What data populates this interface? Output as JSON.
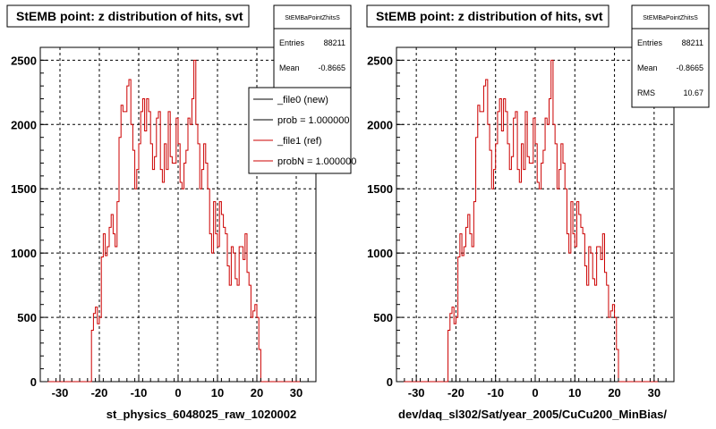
{
  "chart_data": [
    {
      "type": "histogram",
      "title": "StEMB point: z distribution of hits, svt",
      "xlabel": "st_physics_6048025_raw_1020002",
      "ylabel": "",
      "xlim": [
        -35,
        35
      ],
      "ylim": [
        0,
        2600
      ],
      "x_ticks": [
        -30,
        -20,
        -10,
        0,
        10,
        20,
        30
      ],
      "y_ticks": [
        0,
        500,
        1000,
        1500,
        2000,
        2500
      ],
      "grid": true,
      "bin_start": -35,
      "bin_width": 0.5,
      "series": [
        {
          "name": "_file0 (new)",
          "color": "#000000",
          "values": []
        },
        {
          "name": "_file1 (ref)",
          "color": "#cc0000",
          "values": [
            0,
            0,
            0,
            0,
            0,
            0,
            0,
            0,
            0,
            0,
            0,
            0,
            0,
            0,
            0,
            0,
            0,
            0,
            0,
            0,
            0,
            0,
            0,
            0,
            0,
            0,
            400,
            530,
            580,
            450,
            500,
            970,
            1150,
            980,
            1050,
            1200,
            1300,
            1150,
            1050,
            1400,
            1900,
            2150,
            2100,
            2100,
            2300,
            2350,
            2000,
            1800,
            1500,
            1650,
            1850,
            2100,
            2200,
            1950,
            2200,
            2100,
            1850,
            1650,
            1750,
            2050,
            2100,
            1650,
            1550,
            1850,
            1650,
            2100,
            1750,
            1700,
            1700,
            2050,
            1850,
            1550,
            1500,
            1700,
            1800,
            2050,
            2000,
            2200,
            2500,
            2000,
            1850,
            1500,
            1650,
            1850,
            1700,
            1500,
            1150,
            1000,
            1400,
            1150,
            1050,
            1400,
            1300,
            1200,
            1150,
            900,
            750,
            1050,
            1000,
            800,
            750,
            1050,
            1050,
            950,
            1150,
            850,
            750,
            500,
            550,
            600,
            500,
            250,
            0,
            0,
            0,
            0,
            0,
            0,
            0,
            0,
            0,
            0,
            0,
            0,
            0,
            0,
            0,
            0,
            0,
            0,
            0,
            0
          ]
        }
      ],
      "legend": {
        "position": "top-right",
        "entries": [
          {
            "label": "_file0 (new)",
            "color": "#000000"
          },
          {
            "label": "prob = 1.000000",
            "color": "#000000"
          },
          {
            "label": "_file1 (ref)",
            "color": "#cc0000"
          },
          {
            "label": "probN = 1.000000",
            "color": "#cc0000"
          }
        ]
      },
      "stats": {
        "name": "StEMBaPointZhitsS",
        "rows": [
          {
            "label": "Entries",
            "value": "88211"
          },
          {
            "label": "Mean",
            "value": "-0.8665"
          }
        ]
      }
    },
    {
      "type": "histogram",
      "title": "StEMB point: z distribution of hits, svt",
      "xlabel": "dev/daq_sl302/Sat/year_2005/CuCu200_MinBias/",
      "ylabel": "",
      "xlim": [
        -35,
        35
      ],
      "ylim": [
        0,
        2600
      ],
      "x_ticks": [
        -30,
        -20,
        -10,
        0,
        10,
        20,
        30
      ],
      "y_ticks": [
        0,
        500,
        1000,
        1500,
        2000,
        2500
      ],
      "grid": true,
      "bin_start": -35,
      "bin_width": 0.5,
      "series": [
        {
          "name": "",
          "color": "#cc0000",
          "values": [
            0,
            0,
            0,
            0,
            0,
            0,
            0,
            0,
            0,
            0,
            0,
            0,
            0,
            0,
            0,
            0,
            0,
            0,
            0,
            0,
            0,
            0,
            0,
            0,
            0,
            0,
            400,
            530,
            580,
            450,
            500,
            970,
            1150,
            980,
            1050,
            1200,
            1300,
            1150,
            1050,
            1400,
            1900,
            2150,
            2100,
            2100,
            2300,
            2350,
            2000,
            1800,
            1500,
            1650,
            1850,
            2100,
            2200,
            1950,
            2200,
            2100,
            1850,
            1650,
            1750,
            2050,
            2100,
            1650,
            1550,
            1850,
            1650,
            2100,
            1750,
            1700,
            1700,
            2050,
            1850,
            1550,
            1500,
            1700,
            1800,
            2050,
            2000,
            2200,
            2500,
            2000,
            1850,
            1500,
            1650,
            1850,
            1700,
            1500,
            1150,
            1000,
            1400,
            1150,
            1050,
            1400,
            1300,
            1200,
            1150,
            900,
            750,
            1050,
            1000,
            800,
            750,
            1050,
            1050,
            950,
            1150,
            850,
            750,
            500,
            550,
            600,
            500,
            250,
            0,
            0,
            0,
            0,
            0,
            0,
            0,
            0,
            0,
            0,
            0,
            0,
            0,
            0,
            0,
            0,
            0,
            0,
            0,
            0
          ]
        }
      ],
      "stats": {
        "name": "StEMBaPointZhitsS",
        "rows": [
          {
            "label": "Entries",
            "value": "88211"
          },
          {
            "label": "Mean",
            "value": "-0.8665"
          },
          {
            "label": "RMS",
            "value": "10.67"
          }
        ]
      }
    }
  ]
}
